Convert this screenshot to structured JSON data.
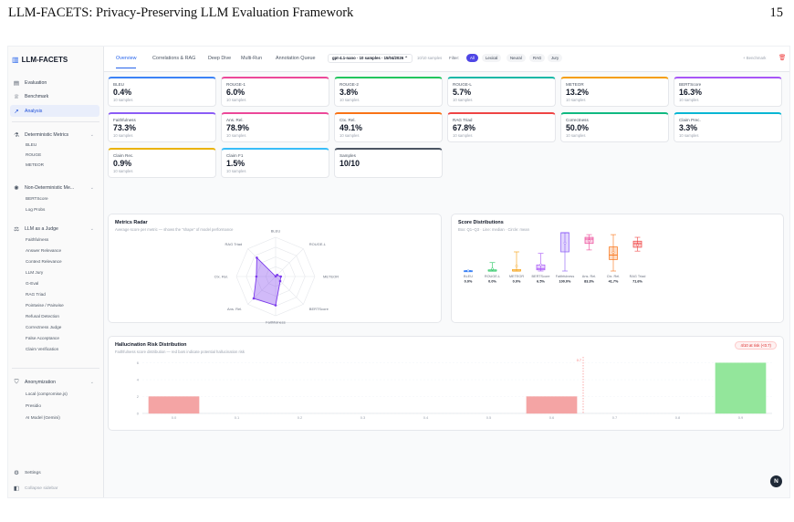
{
  "paper": {
    "title": "LLM-FACETS: Privacy-Preserving LLM Evaluation Framework",
    "page_number": "15"
  },
  "brand": {
    "name": "LLM-FACETS",
    "icon": "bar-chart-icon"
  },
  "nav": {
    "evaluation": "Evaluation",
    "benchmark": "Benchmark",
    "analysis": "Analysis"
  },
  "sections": {
    "deterministic": {
      "label": "Deterministic Metrics",
      "items": [
        "BLEU",
        "ROUGE",
        "METEOR"
      ]
    },
    "non_deterministic": {
      "label": "Non-Deterministic Me...",
      "items": [
        "BERTScore",
        "Log Probs"
      ]
    },
    "judge": {
      "label": "LLM as a Judge",
      "items": [
        "Faithfulness",
        "Answer Relevance",
        "Context Relevance",
        "LLM Jury",
        "G-Eval",
        "RAG Triad",
        "Pointwise / Pairwise",
        "Refusal Detection",
        "Correctness Judge",
        "False Acceptance",
        "Claim Verification"
      ]
    },
    "anonymization": {
      "label": "Anonymization",
      "items": [
        "Local (compromise.js)",
        "Presidio",
        "AI Model (Gemini)"
      ]
    }
  },
  "footer": {
    "settings": "Settings",
    "collapse": "Collapse sidebar"
  },
  "tabs": [
    "Overview",
    "Correlations & RAG",
    "Deep Dive",
    "Multi-Run",
    "Annotation Queue"
  ],
  "run_select": "gpt-4.1-nano · 10 samples · 15/04/2026 ⌃",
  "samples_note": "10/10 samples",
  "filter": {
    "label": "Filter:",
    "chips": [
      "All",
      "Lexical",
      "Neural",
      "RAG",
      "Jury"
    ],
    "active": "All"
  },
  "benchmark_link": "+ Benchmark",
  "cards": [
    {
      "label": "BLEU",
      "value": "0.4%",
      "sub": "10 samples",
      "color": "#3b82f6"
    },
    {
      "label": "ROUGE-1",
      "value": "6.0%",
      "sub": "10 samples",
      "color": "#ec4899"
    },
    {
      "label": "ROUGE-2",
      "value": "3.8%",
      "sub": "10 samples",
      "color": "#22c55e"
    },
    {
      "label": "ROUGE-L",
      "value": "5.7%",
      "sub": "10 samples",
      "color": "#14b8a6"
    },
    {
      "label": "METEOR",
      "value": "13.2%",
      "sub": "10 samples",
      "color": "#f59e0b"
    },
    {
      "label": "BERTScore",
      "value": "16.3%",
      "sub": "10 samples",
      "color": "#a855f7"
    },
    {
      "label": "Faithfulness",
      "value": "73.3%",
      "sub": "10 samples",
      "color": "#8b5cf6"
    },
    {
      "label": "Ans. Rel.",
      "value": "78.9%",
      "sub": "10 samples",
      "color": "#ec4899"
    },
    {
      "label": "Ctx. Rel.",
      "value": "49.1%",
      "sub": "10 samples",
      "color": "#f97316"
    },
    {
      "label": "RAG Triad",
      "value": "67.8%",
      "sub": "10 samples",
      "color": "#ef4444"
    },
    {
      "label": "Correctness",
      "value": "50.0%",
      "sub": "10 samples",
      "color": "#10b981"
    },
    {
      "label": "Claim Prec.",
      "value": "3.3%",
      "sub": "10 samples",
      "color": "#06b6d4"
    },
    {
      "label": "Claim Rec.",
      "value": "0.9%",
      "sub": "10 samples",
      "color": "#eab308"
    },
    {
      "label": "Claim F1",
      "value": "1.5%",
      "sub": "10 samples",
      "color": "#38bdf8"
    },
    {
      "label": "Samples",
      "value": "10/10",
      "sub": "",
      "color": "#4b5563"
    }
  ],
  "radar": {
    "title": "Metrics Radar",
    "subtitle": "Average score per metric — shows the \"shape\" of model performance",
    "axes": [
      "BLEU",
      "ROUGE-L",
      "METEOR",
      "BERTScore",
      "Faithfulness",
      "Ans. Rel.",
      "Ctx. Rel.",
      "RAG Triad"
    ],
    "values": [
      0.4,
      5.7,
      13.2,
      16.3,
      73.3,
      78.9,
      49.1,
      67.8
    ],
    "max": 100,
    "color": "#7c3aed"
  },
  "boxes": {
    "title": "Score Distributions",
    "subtitle": "Box: Q1–Q3 · Line: median · Circle: mean",
    "items": [
      {
        "label": "BLEU",
        "median_label": "0.0%",
        "min": 0,
        "q1": 0,
        "median": 0,
        "q3": 1,
        "max": 1.5,
        "mean": 0.4,
        "color": "#3b82f6"
      },
      {
        "label": "ROUGE-L",
        "median_label": "0.0%",
        "min": 0,
        "q1": 0,
        "median": 0,
        "q3": 3,
        "max": 22,
        "mean": 5.7,
        "color": "#22c55e"
      },
      {
        "label": "METEOR",
        "median_label": "0.0%",
        "min": 0,
        "q1": 0,
        "median": 0,
        "q3": 4,
        "max": 50,
        "mean": 13.2,
        "color": "#f59e0b"
      },
      {
        "label": "BERTScore",
        "median_label": "6.5%",
        "min": 0,
        "q1": 3,
        "median": 6.5,
        "q3": 16,
        "max": 46,
        "mean": 16.3,
        "color": "#a855f7"
      },
      {
        "label": "Faithfulness",
        "median_label": "100.0%",
        "min": 0,
        "q1": 50,
        "median": 100,
        "q3": 100,
        "max": 100,
        "mean": 73.3,
        "color": "#8b5cf6"
      },
      {
        "label": "Ans. Rel.",
        "median_label": "83.3%",
        "min": 55,
        "q1": 72,
        "median": 83.3,
        "q3": 88,
        "max": 95,
        "mean": 78.9,
        "color": "#ec4899"
      },
      {
        "label": "Ctx. Rel.",
        "median_label": "41.7%",
        "min": 0,
        "q1": 30,
        "median": 41.7,
        "q3": 63,
        "max": 95,
        "mean": 49.1,
        "color": "#f97316"
      },
      {
        "label": "RAG Triad",
        "median_label": "71.6%",
        "min": 52,
        "q1": 62,
        "median": 71.6,
        "q3": 78,
        "max": 88,
        "mean": 67.8,
        "color": "#ef4444"
      }
    ]
  },
  "chart_data": {
    "type": "bar",
    "title": "Hallucination Risk Distribution",
    "subtitle": "Faithfulness score distribution — red bars indicate potential hallucination risk",
    "badge": "4/10 at risk (<0.7)",
    "categories": [
      "0.0",
      "0.1",
      "0.2",
      "0.3",
      "0.4",
      "0.5",
      "0.6",
      "0.7",
      "0.8",
      "0.9"
    ],
    "values": [
      2,
      0,
      0,
      0,
      0,
      0,
      2,
      0,
      0,
      6
    ],
    "yticks": [
      "0",
      "2",
      "4",
      "6"
    ],
    "ylim": [
      0,
      6.5
    ],
    "threshold": 0.7,
    "threshold_label": "0.7",
    "risk_color": "#f4a4a4",
    "ok_color": "#93e69b",
    "xlabel": "",
    "ylabel": ""
  },
  "help_label": "N"
}
